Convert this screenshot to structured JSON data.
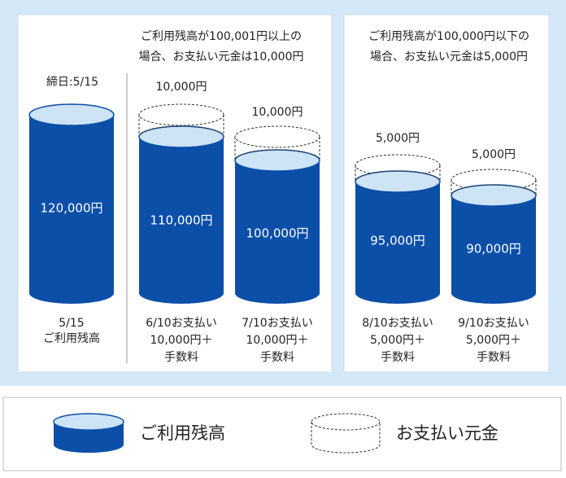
{
  "header": {
    "left": [
      "ご利用残高が100,001円以上の",
      "場合、お支払い元金は10,000円"
    ],
    "right": [
      "ご利用残高が100,000円以下の",
      "場合、お支払い元金は5,000円"
    ]
  },
  "cutoff_label": "締日:5/15",
  "cylinders": [
    {
      "amount": "120,000円",
      "caption": [
        "5/15",
        "ご利用残高"
      ]
    },
    {
      "payment": "10,000円",
      "amount": "110,000円",
      "caption": [
        "6/10お支払い",
        "10,000円＋",
        "手数料"
      ]
    },
    {
      "payment": "10,000円",
      "amount": "100,000円",
      "caption": [
        "7/10お支払い",
        "10,000円＋",
        "手数料"
      ]
    },
    {
      "payment": "5,000円",
      "amount": "95,000円",
      "caption": [
        "8/10お支払い",
        "5,000円＋",
        "手数料"
      ]
    },
    {
      "payment": "5,000円",
      "amount": "90,000円",
      "caption": [
        "9/10お支払い",
        "5,000円＋",
        "手数料"
      ]
    }
  ],
  "legend": {
    "balance": "ご利用残高",
    "principal": "お支払い元金"
  }
}
